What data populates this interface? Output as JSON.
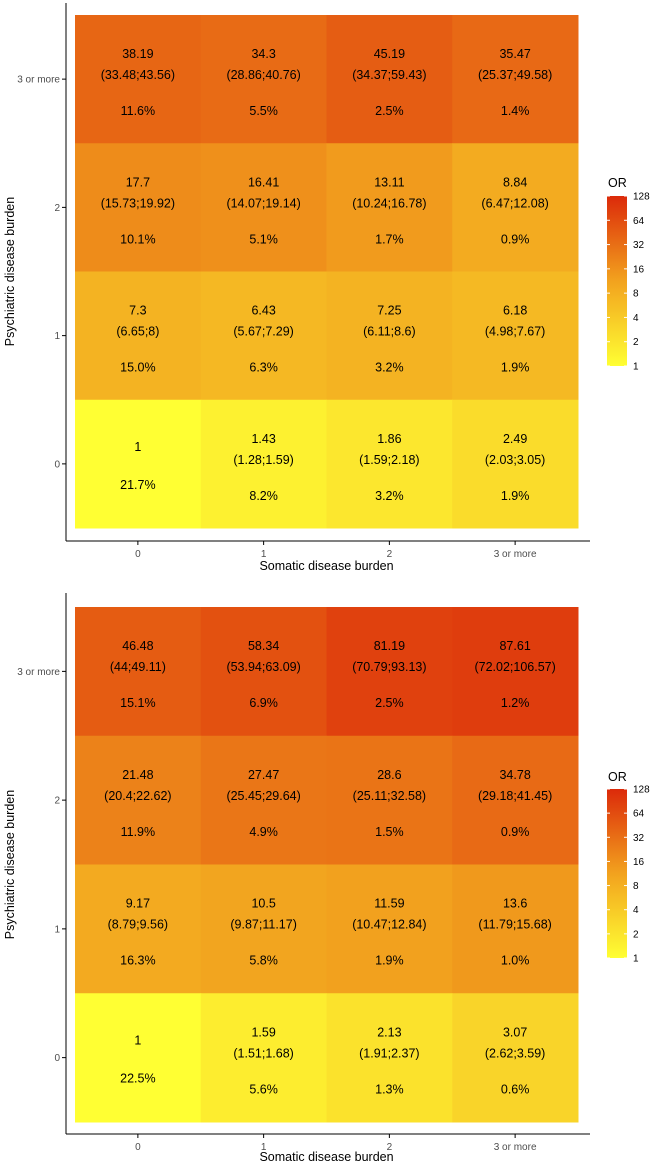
{
  "chart_data": [
    {
      "type": "heatmap",
      "xlabel": "Somatic disease burden",
      "ylabel": "Psychiatric disease burden",
      "x_categories": [
        "0",
        "1",
        "2",
        "3 or more"
      ],
      "y_categories": [
        "0",
        "1",
        "2",
        "3 or more"
      ],
      "legend": {
        "title": "OR",
        "ticks": [
          "128",
          "64",
          "32",
          "16",
          "8",
          "4",
          "2",
          "1"
        ],
        "scale": "log2",
        "range": [
          1,
          128
        ],
        "placement": "right"
      },
      "cells": [
        {
          "x": "0",
          "y": "3 or more",
          "or": 38.19,
          "or_text": "38.19",
          "ci": "(33.48;43.56)",
          "pct": "11.6%"
        },
        {
          "x": "1",
          "y": "3 or more",
          "or": 34.3,
          "or_text": "34.3",
          "ci": "(28.86;40.76)",
          "pct": "5.5%"
        },
        {
          "x": "2",
          "y": "3 or more",
          "or": 45.19,
          "or_text": "45.19",
          "ci": "(34.37;59.43)",
          "pct": "2.5%"
        },
        {
          "x": "3 or more",
          "y": "3 or more",
          "or": 35.47,
          "or_text": "35.47",
          "ci": "(25.37;49.58)",
          "pct": "1.4%"
        },
        {
          "x": "0",
          "y": "2",
          "or": 17.7,
          "or_text": "17.7",
          "ci": "(15.73;19.92)",
          "pct": "10.1%"
        },
        {
          "x": "1",
          "y": "2",
          "or": 16.41,
          "or_text": "16.41",
          "ci": "(14.07;19.14)",
          "pct": "5.1%"
        },
        {
          "x": "2",
          "y": "2",
          "or": 13.11,
          "or_text": "13.11",
          "ci": "(10.24;16.78)",
          "pct": "1.7%"
        },
        {
          "x": "3 or more",
          "y": "2",
          "or": 8.84,
          "or_text": "8.84",
          "ci": "(6.47;12.08)",
          "pct": "0.9%"
        },
        {
          "x": "0",
          "y": "1",
          "or": 7.3,
          "or_text": "7.3",
          "ci": "(6.65;8)",
          "pct": "15.0%"
        },
        {
          "x": "1",
          "y": "1",
          "or": 6.43,
          "or_text": "6.43",
          "ci": "(5.67;7.29)",
          "pct": "6.3%"
        },
        {
          "x": "2",
          "y": "1",
          "or": 7.25,
          "or_text": "7.25",
          "ci": "(6.11;8.6)",
          "pct": "3.2%"
        },
        {
          "x": "3 or more",
          "y": "1",
          "or": 6.18,
          "or_text": "6.18",
          "ci": "(4.98;7.67)",
          "pct": "1.9%"
        },
        {
          "x": "0",
          "y": "0",
          "or": 1,
          "or_text": "1",
          "ci": "",
          "pct": "21.7%"
        },
        {
          "x": "1",
          "y": "0",
          "or": 1.43,
          "or_text": "1.43",
          "ci": "(1.28;1.59)",
          "pct": "8.2%"
        },
        {
          "x": "2",
          "y": "0",
          "or": 1.86,
          "or_text": "1.86",
          "ci": "(1.59;2.18)",
          "pct": "3.2%"
        },
        {
          "x": "3 or more",
          "y": "0",
          "or": 2.49,
          "or_text": "2.49",
          "ci": "(2.03;3.05)",
          "pct": "1.9%"
        }
      ]
    },
    {
      "type": "heatmap",
      "xlabel": "Somatic disease burden",
      "ylabel": "Psychiatric disease burden",
      "x_categories": [
        "0",
        "1",
        "2",
        "3 or more"
      ],
      "y_categories": [
        "0",
        "1",
        "2",
        "3 or more"
      ],
      "legend": {
        "title": "OR",
        "ticks": [
          "128",
          "64",
          "32",
          "16",
          "8",
          "4",
          "2",
          "1"
        ],
        "scale": "log2",
        "range": [
          1,
          128
        ],
        "placement": "right"
      },
      "cells": [
        {
          "x": "0",
          "y": "3 or more",
          "or": 46.48,
          "or_text": "46.48",
          "ci": "(44;49.11)",
          "pct": "15.1%"
        },
        {
          "x": "1",
          "y": "3 or more",
          "or": 58.34,
          "or_text": "58.34",
          "ci": "(53.94;63.09)",
          "pct": "6.9%"
        },
        {
          "x": "2",
          "y": "3 or more",
          "or": 81.19,
          "or_text": "81.19",
          "ci": "(70.79;93.13)",
          "pct": "2.5%"
        },
        {
          "x": "3 or more",
          "y": "3 or more",
          "or": 87.61,
          "or_text": "87.61",
          "ci": "(72.02;106.57)",
          "pct": "1.2%"
        },
        {
          "x": "0",
          "y": "2",
          "or": 21.48,
          "or_text": "21.48",
          "ci": "(20.4;22.62)",
          "pct": "11.9%"
        },
        {
          "x": "1",
          "y": "2",
          "or": 27.47,
          "or_text": "27.47",
          "ci": "(25.45;29.64)",
          "pct": "4.9%"
        },
        {
          "x": "2",
          "y": "2",
          "or": 28.6,
          "or_text": "28.6",
          "ci": "(25.11;32.58)",
          "pct": "1.5%"
        },
        {
          "x": "3 or more",
          "y": "2",
          "or": 34.78,
          "or_text": "34.78",
          "ci": "(29.18;41.45)",
          "pct": "0.9%"
        },
        {
          "x": "0",
          "y": "1",
          "or": 9.17,
          "or_text": "9.17",
          "ci": "(8.79;9.56)",
          "pct": "16.3%"
        },
        {
          "x": "1",
          "y": "1",
          "or": 10.5,
          "or_text": "10.5",
          "ci": "(9.87;11.17)",
          "pct": "5.8%"
        },
        {
          "x": "2",
          "y": "1",
          "or": 11.59,
          "or_text": "11.59",
          "ci": "(10.47;12.84)",
          "pct": "1.9%"
        },
        {
          "x": "3 or more",
          "y": "1",
          "or": 13.6,
          "or_text": "13.6",
          "ci": "(11.79;15.68)",
          "pct": "1.0%"
        },
        {
          "x": "0",
          "y": "0",
          "or": 1,
          "or_text": "1",
          "ci": "",
          "pct": "22.5%"
        },
        {
          "x": "1",
          "y": "0",
          "or": 1.59,
          "or_text": "1.59",
          "ci": "(1.51;1.68)",
          "pct": "5.6%"
        },
        {
          "x": "2",
          "y": "0",
          "or": 2.13,
          "or_text": "2.13",
          "ci": "(1.91;2.37)",
          "pct": "1.3%"
        },
        {
          "x": "3 or more",
          "y": "0",
          "or": 3.07,
          "or_text": "3.07",
          "ci": "(2.62;3.59)",
          "pct": "0.6%"
        }
      ]
    }
  ],
  "colors": {
    "scale_low": "#ffff33",
    "scale_mid": "#f2a21e",
    "scale_high": "#dc2a0a",
    "axis": "#000000",
    "tick_text": "#4d4d4d",
    "label_text": "#000000"
  }
}
